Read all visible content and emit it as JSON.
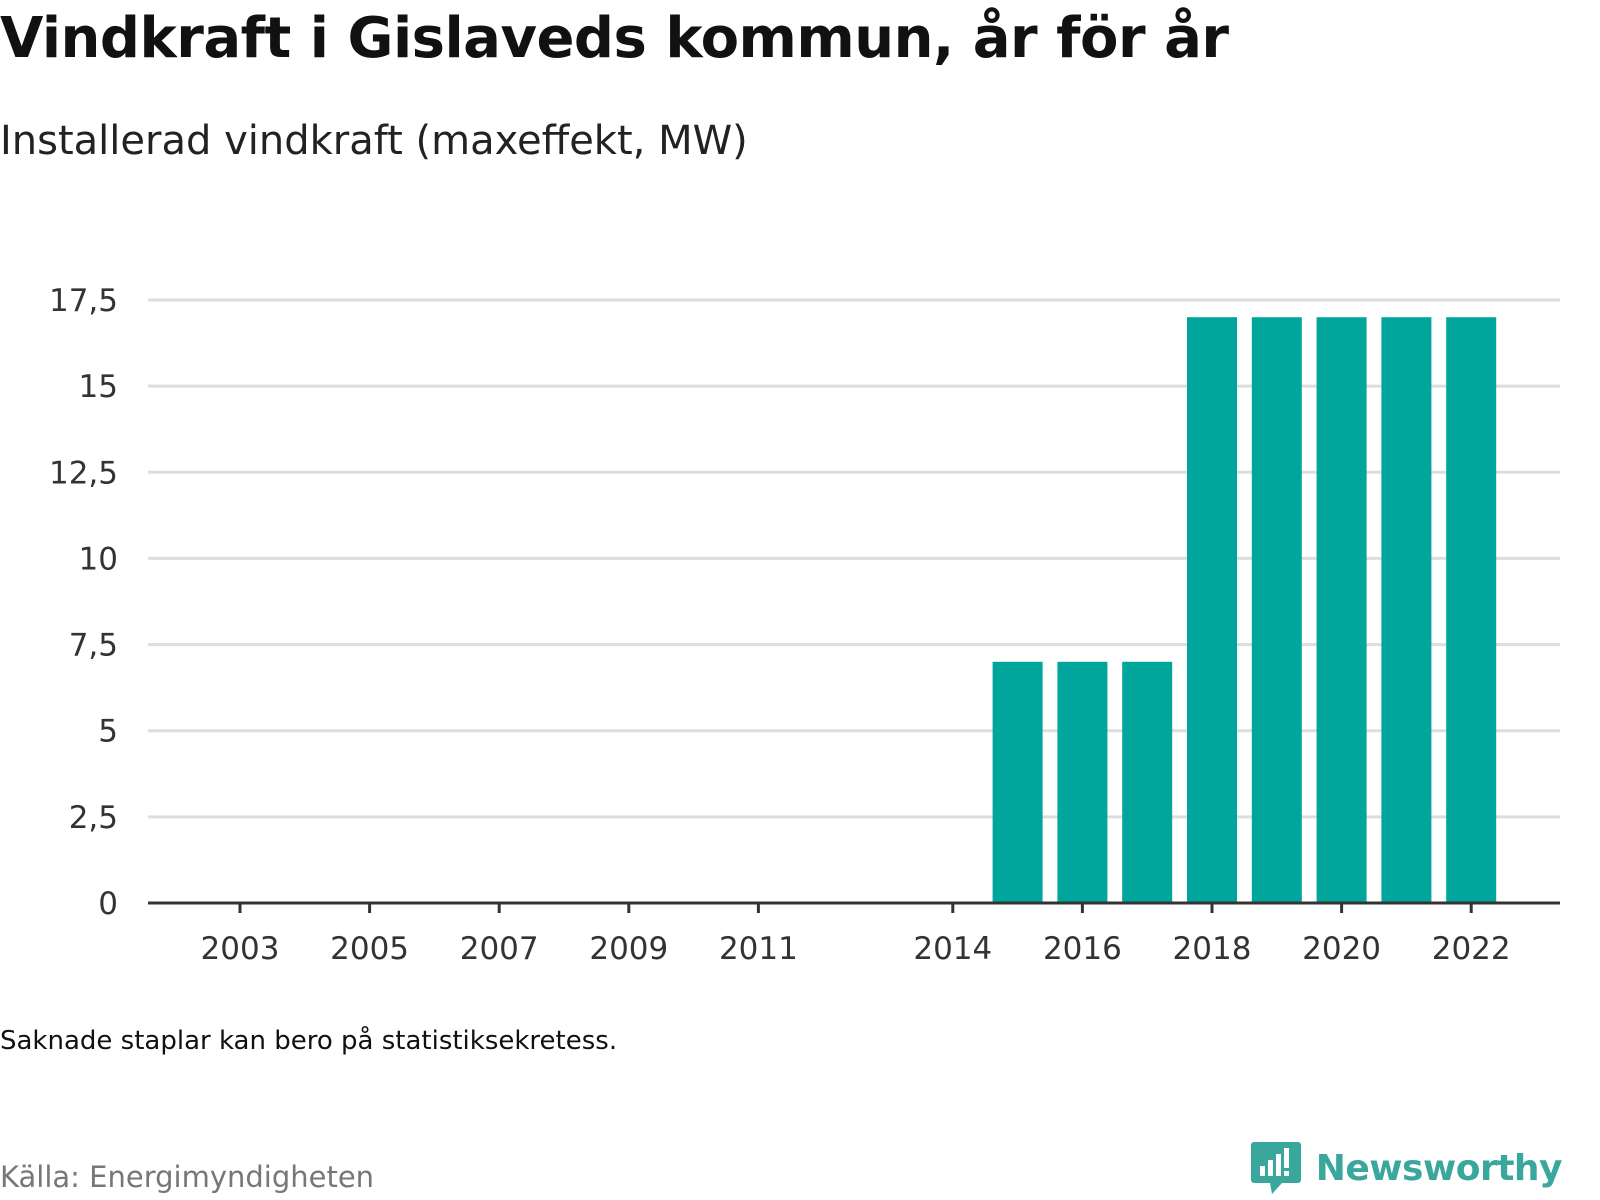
{
  "header": {
    "title": "Vindkraft i Gislaveds kommun, år för år",
    "subtitle": "Installerad vindkraft (maxeffekt, MW)"
  },
  "footer": {
    "note": "Saknade staplar kan bero på statistiksekretess.",
    "source": "Källa: Energimyndigheten",
    "brand": "Newsworthy",
    "brand_icon": "bar-chart-speech-bubble-icon"
  },
  "colors": {
    "bar": "#00a69b",
    "grid": "#dddddd",
    "axis": "#333333",
    "brand": "#3aa79d"
  },
  "chart_data": {
    "type": "bar",
    "title": "Vindkraft i Gislaveds kommun, år för år",
    "subtitle": "Installerad vindkraft (maxeffekt, MW)",
    "xlabel": "",
    "ylabel": "",
    "categories": [
      "2003",
      "2004",
      "2005",
      "2006",
      "2007",
      "2008",
      "2009",
      "2010",
      "2011",
      "2012",
      "2013",
      "2014",
      "2015",
      "2016",
      "2017",
      "2018",
      "2019",
      "2020",
      "2021",
      "2022"
    ],
    "values": [
      null,
      null,
      null,
      null,
      null,
      null,
      null,
      null,
      null,
      null,
      null,
      null,
      7,
      7,
      7,
      17,
      17,
      17,
      17,
      17
    ],
    "x_tick_labels": [
      "2003",
      "2005",
      "2007",
      "2009",
      "2011",
      "2014",
      "2016",
      "2018",
      "2020",
      "2022"
    ],
    "y_ticks": [
      0,
      2.5,
      5,
      7.5,
      10,
      12.5,
      15,
      17.5
    ],
    "y_tick_labels": [
      "0",
      "2,5",
      "5",
      "7,5",
      "10",
      "12,5",
      "15",
      "17,5"
    ],
    "ylim": [
      0,
      17.5
    ],
    "grid": true,
    "legend": "none"
  }
}
